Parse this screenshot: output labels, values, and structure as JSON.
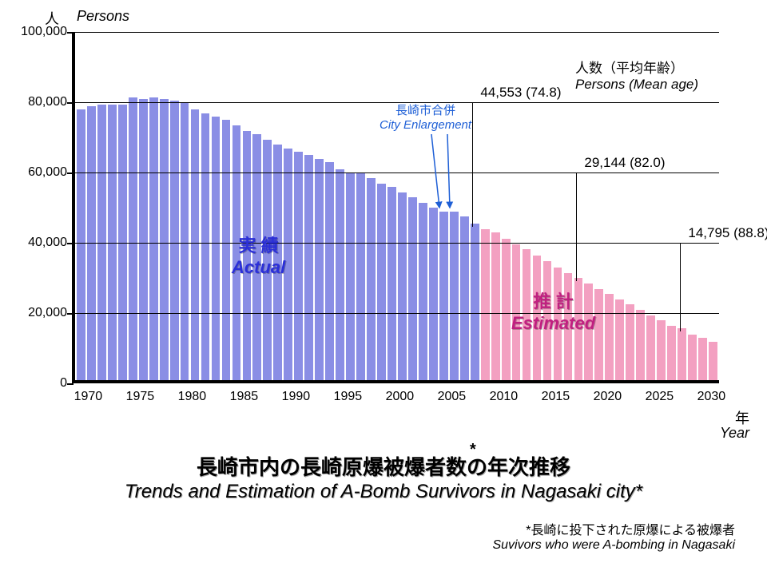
{
  "chart": {
    "type": "bar",
    "y_axis": {
      "min": 0,
      "max": 100000,
      "ticks": [
        0,
        20000,
        40000,
        60000,
        80000,
        100000
      ],
      "tick_labels": [
        "0",
        "20,000",
        "40,000",
        "60,000",
        "80,000",
        "100,000"
      ],
      "label_jp": "人",
      "label_en": "Persons"
    },
    "x_axis": {
      "start_year": 1969,
      "end_year": 2030,
      "tick_years": [
        1970,
        1975,
        1980,
        1985,
        1990,
        1995,
        2000,
        2005,
        2010,
        2015,
        2020,
        2025,
        2030
      ],
      "tick_labels": [
        "1970",
        "1975",
        "1980",
        "1985",
        "1990",
        "1995",
        "2000",
        "2005",
        "2010",
        "2015",
        "2020",
        "2025",
        "2030"
      ],
      "label_jp": "年",
      "label_en": "Year"
    },
    "colors": {
      "actual_bar": "#8a8ee5",
      "estimated_bar": "#f3a0c1",
      "background": "#ffffff",
      "grid": "#000000",
      "actual_label": "#2b2fd8",
      "estimated_label": "#c02080",
      "enlargement_label": "#1e5fd6"
    },
    "fonts": {
      "tick_size": 16,
      "axis_label_size": 18,
      "series_label_size": 22,
      "callout_size": 17,
      "title_jp_size": 26,
      "title_en_size": 24,
      "footnote_size": 16
    },
    "bars": [
      {
        "year": 1969,
        "value": 77000,
        "series": "actual"
      },
      {
        "year": 1970,
        "value": 78000,
        "series": "actual"
      },
      {
        "year": 1971,
        "value": 78500,
        "series": "actual"
      },
      {
        "year": 1972,
        "value": 78500,
        "series": "actual"
      },
      {
        "year": 1973,
        "value": 78500,
        "series": "actual"
      },
      {
        "year": 1974,
        "value": 80500,
        "series": "actual"
      },
      {
        "year": 1975,
        "value": 80000,
        "series": "actual"
      },
      {
        "year": 1976,
        "value": 80500,
        "series": "actual"
      },
      {
        "year": 1977,
        "value": 80000,
        "series": "actual"
      },
      {
        "year": 1978,
        "value": 79500,
        "series": "actual"
      },
      {
        "year": 1979,
        "value": 79000,
        "series": "actual"
      },
      {
        "year": 1980,
        "value": 77000,
        "series": "actual"
      },
      {
        "year": 1981,
        "value": 76000,
        "series": "actual"
      },
      {
        "year": 1982,
        "value": 75000,
        "series": "actual"
      },
      {
        "year": 1983,
        "value": 74000,
        "series": "actual"
      },
      {
        "year": 1984,
        "value": 72500,
        "series": "actual"
      },
      {
        "year": 1985,
        "value": 71000,
        "series": "actual"
      },
      {
        "year": 1986,
        "value": 70000,
        "series": "actual"
      },
      {
        "year": 1987,
        "value": 68500,
        "series": "actual"
      },
      {
        "year": 1988,
        "value": 67000,
        "series": "actual"
      },
      {
        "year": 1989,
        "value": 66000,
        "series": "actual"
      },
      {
        "year": 1990,
        "value": 65000,
        "series": "actual"
      },
      {
        "year": 1991,
        "value": 64000,
        "series": "actual"
      },
      {
        "year": 1992,
        "value": 63000,
        "series": "actual"
      },
      {
        "year": 1993,
        "value": 62000,
        "series": "actual"
      },
      {
        "year": 1994,
        "value": 60000,
        "series": "actual"
      },
      {
        "year": 1995,
        "value": 59000,
        "series": "actual"
      },
      {
        "year": 1996,
        "value": 59000,
        "series": "actual"
      },
      {
        "year": 1997,
        "value": 57500,
        "series": "actual"
      },
      {
        "year": 1998,
        "value": 56000,
        "series": "actual"
      },
      {
        "year": 1999,
        "value": 55000,
        "series": "actual"
      },
      {
        "year": 2000,
        "value": 53500,
        "series": "actual"
      },
      {
        "year": 2001,
        "value": 52000,
        "series": "actual"
      },
      {
        "year": 2002,
        "value": 50500,
        "series": "actual"
      },
      {
        "year": 2003,
        "value": 49000,
        "series": "actual"
      },
      {
        "year": 2004,
        "value": 48000,
        "series": "actual"
      },
      {
        "year": 2005,
        "value": 48000,
        "series": "actual"
      },
      {
        "year": 2006,
        "value": 46500,
        "series": "actual"
      },
      {
        "year": 2007,
        "value": 44553,
        "series": "actual"
      },
      {
        "year": 2008,
        "value": 43000,
        "series": "estimated"
      },
      {
        "year": 2009,
        "value": 42000,
        "series": "estimated"
      },
      {
        "year": 2010,
        "value": 40200,
        "series": "estimated"
      },
      {
        "year": 2011,
        "value": 38700,
        "series": "estimated"
      },
      {
        "year": 2012,
        "value": 37200,
        "series": "estimated"
      },
      {
        "year": 2013,
        "value": 35500,
        "series": "estimated"
      },
      {
        "year": 2014,
        "value": 33800,
        "series": "estimated"
      },
      {
        "year": 2015,
        "value": 32000,
        "series": "estimated"
      },
      {
        "year": 2016,
        "value": 30500,
        "series": "estimated"
      },
      {
        "year": 2017,
        "value": 29144,
        "series": "estimated"
      },
      {
        "year": 2018,
        "value": 27500,
        "series": "estimated"
      },
      {
        "year": 2019,
        "value": 26000,
        "series": "estimated"
      },
      {
        "year": 2020,
        "value": 24500,
        "series": "estimated"
      },
      {
        "year": 2021,
        "value": 23000,
        "series": "estimated"
      },
      {
        "year": 2022,
        "value": 21500,
        "series": "estimated"
      },
      {
        "year": 2023,
        "value": 20000,
        "series": "estimated"
      },
      {
        "year": 2024,
        "value": 18500,
        "series": "estimated"
      },
      {
        "year": 2025,
        "value": 17000,
        "series": "estimated"
      },
      {
        "year": 2026,
        "value": 15500,
        "series": "estimated"
      },
      {
        "year": 2027,
        "value": 14795,
        "series": "estimated"
      },
      {
        "year": 2028,
        "value": 13000,
        "series": "estimated"
      },
      {
        "year": 2029,
        "value": 12000,
        "series": "estimated"
      },
      {
        "year": 2030,
        "value": 11000,
        "series": "estimated"
      }
    ],
    "series_labels": {
      "actual_jp": "実  績",
      "actual_en": "Actual",
      "estimated_jp": "推  計",
      "estimated_en": "Estimated"
    },
    "enlargement": {
      "label_jp": "長崎市合併",
      "label_en": "City Enlargement",
      "arrow_years": [
        2004,
        2005
      ]
    },
    "callouts": [
      {
        "year": 2007,
        "text": "44,553 (74.8)",
        "y_level": 80000
      },
      {
        "year": 2017,
        "text": "29,144 (82.0)",
        "y_level": 60000
      },
      {
        "year": 2027,
        "text": "14,795 (88.8)",
        "y_level": 40000
      }
    ],
    "callout_header": {
      "jp": "人数（平均年齢）",
      "en": "Persons (Mean age)"
    },
    "title": {
      "jp": "長崎市内の長崎原爆被爆者数の年次推移",
      "jp_asterisk_after": "*",
      "en": "Trends and Estimation of A-Bomb Survivors in Nagasaki city*"
    },
    "footnote": {
      "jp": "*長崎に投下された原爆による被爆者",
      "en": "Suvivors who were A-bombing in Nagasaki"
    }
  }
}
